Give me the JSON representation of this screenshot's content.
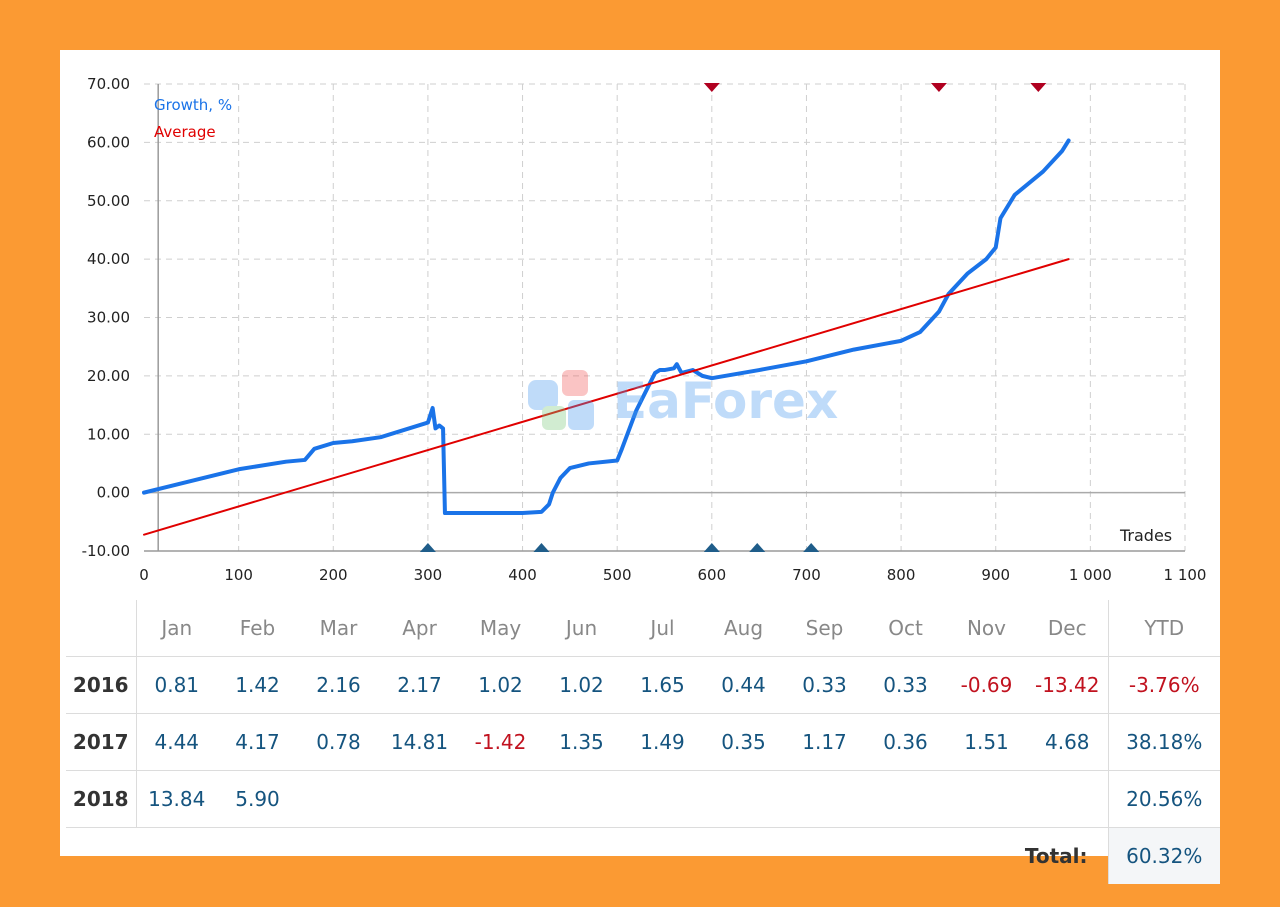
{
  "chart_data": {
    "type": "line",
    "legend": [
      "Growth, %",
      "Average"
    ],
    "xlabel": "Trades",
    "xlim": [
      0,
      1100
    ],
    "ylim": [
      -10,
      70
    ],
    "x_ticks": [
      "0",
      "100",
      "200",
      "300",
      "400",
      "500",
      "600",
      "700",
      "800",
      "900",
      "1 000",
      "1 100"
    ],
    "y_ticks": [
      "70.00",
      "60.00",
      "50.00",
      "40.00",
      "30.00",
      "20.00",
      "10.00",
      "0.00",
      "-10.00"
    ],
    "grid": true,
    "series": [
      {
        "name": "Growth, %",
        "color": "#1a73e8",
        "x": [
          0,
          20,
          50,
          100,
          150,
          170,
          180,
          200,
          220,
          250,
          300,
          305,
          308,
          312,
          316,
          318,
          330,
          360,
          400,
          420,
          428,
          432,
          440,
          450,
          470,
          500,
          505,
          520,
          540,
          545,
          550,
          560,
          563,
          568,
          580,
          590,
          600,
          650,
          700,
          750,
          800,
          820,
          840,
          850,
          870,
          890,
          895,
          900,
          905,
          920,
          950,
          970,
          977
        ],
        "y": [
          0,
          0.8,
          2,
          4,
          5.3,
          5.6,
          7.5,
          8.5,
          8.8,
          9.5,
          12,
          14.5,
          11,
          11.5,
          11,
          -3.5,
          -3.5,
          -3.5,
          -3.5,
          -3.3,
          -2,
          0,
          2.5,
          4.2,
          5,
          5.5,
          7.5,
          14,
          20.5,
          21,
          21,
          21.3,
          22,
          20.5,
          21,
          20,
          19.6,
          21,
          22.5,
          24.5,
          26,
          27.5,
          31,
          34,
          37.5,
          40,
          41,
          42,
          47,
          51,
          55,
          58.5,
          60.32
        ]
      },
      {
        "name": "Average",
        "color": "#e00000",
        "x": [
          0,
          977
        ],
        "y": [
          -7.2,
          40
        ]
      }
    ],
    "markers_top": [
      600,
      840,
      945
    ],
    "markers_bottom": [
      300,
      420,
      600,
      648,
      705
    ],
    "marker_colors": {
      "top": "#b00020",
      "bottom": "#1f5d8a"
    }
  },
  "table": {
    "year_header": "",
    "months": [
      "Jan",
      "Feb",
      "Mar",
      "Apr",
      "May",
      "Jun",
      "Jul",
      "Aug",
      "Sep",
      "Oct",
      "Nov",
      "Dec"
    ],
    "ytd_header": "YTD",
    "rows": [
      {
        "year": "2016",
        "values": [
          "0.81",
          "1.42",
          "2.16",
          "2.17",
          "1.02",
          "1.02",
          "1.65",
          "0.44",
          "0.33",
          "0.33",
          "-0.69",
          "-13.42"
        ],
        "ytd": "-3.76%"
      },
      {
        "year": "2017",
        "values": [
          "4.44",
          "4.17",
          "0.78",
          "14.81",
          "-1.42",
          "1.35",
          "1.49",
          "0.35",
          "1.17",
          "0.36",
          "1.51",
          "4.68"
        ],
        "ytd": "38.18%"
      },
      {
        "year": "2018",
        "values": [
          "13.84",
          "5.90",
          "",
          "",
          "",
          "",
          "",
          "",
          "",
          "",
          "",
          ""
        ],
        "ytd": "20.56%"
      }
    ],
    "total_label": "Total:",
    "total_value": "60.32%"
  },
  "watermark": {
    "text": "EaForex"
  },
  "colors": {
    "background": "#fb9a33",
    "positive": "#15547f",
    "negative": "#c1121f"
  }
}
